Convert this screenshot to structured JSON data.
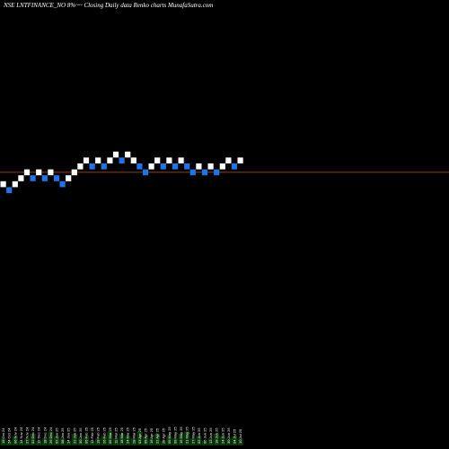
{
  "chart_title": "NSE LNTFINANCE_NO 8%~~  Closing Daily data  Renko  charts MunafaSutra.com",
  "colors": {
    "background": "#000000",
    "up_brick": "#ffffff",
    "down_brick": "#1e74e8",
    "reference_line": "#c0541a",
    "volume": "#0a3a0a"
  },
  "chart_data": {
    "type": "renko",
    "title": "NSE LNTFINANCE_NO 8%~~  Closing Daily data  Renko  charts MunafaSutra.com",
    "xlabel": "",
    "ylabel": "",
    "grid": false,
    "bricks": [
      {
        "level": 2,
        "dir": "up"
      },
      {
        "level": 1,
        "dir": "down"
      },
      {
        "level": 2,
        "dir": "up"
      },
      {
        "level": 3,
        "dir": "up"
      },
      {
        "level": 4,
        "dir": "up"
      },
      {
        "level": 3,
        "dir": "down"
      },
      {
        "level": 4,
        "dir": "up"
      },
      {
        "level": 3,
        "dir": "down"
      },
      {
        "level": 4,
        "dir": "up"
      },
      {
        "level": 3,
        "dir": "down"
      },
      {
        "level": 2,
        "dir": "down"
      },
      {
        "level": 3,
        "dir": "up"
      },
      {
        "level": 4,
        "dir": "up"
      },
      {
        "level": 5,
        "dir": "up"
      },
      {
        "level": 6,
        "dir": "up"
      },
      {
        "level": 5,
        "dir": "down"
      },
      {
        "level": 6,
        "dir": "up"
      },
      {
        "level": 5,
        "dir": "down"
      },
      {
        "level": 6,
        "dir": "up"
      },
      {
        "level": 7,
        "dir": "up"
      },
      {
        "level": 6,
        "dir": "down"
      },
      {
        "level": 7,
        "dir": "up"
      },
      {
        "level": 6,
        "dir": "up"
      },
      {
        "level": 5,
        "dir": "down"
      },
      {
        "level": 4,
        "dir": "down"
      },
      {
        "level": 5,
        "dir": "up"
      },
      {
        "level": 6,
        "dir": "up"
      },
      {
        "level": 5,
        "dir": "down"
      },
      {
        "level": 6,
        "dir": "up"
      },
      {
        "level": 5,
        "dir": "down"
      },
      {
        "level": 6,
        "dir": "up"
      },
      {
        "level": 5,
        "dir": "down"
      },
      {
        "level": 4,
        "dir": "down"
      },
      {
        "level": 5,
        "dir": "up"
      },
      {
        "level": 4,
        "dir": "down"
      },
      {
        "level": 5,
        "dir": "up"
      },
      {
        "level": 4,
        "dir": "down"
      },
      {
        "level": 5,
        "dir": "up"
      },
      {
        "level": 6,
        "dir": "up"
      },
      {
        "level": 5,
        "dir": "down"
      },
      {
        "level": 6,
        "dir": "up"
      }
    ],
    "reference_level": 4.5,
    "x_tick_labels": [
      "15 Oct 24",
      "24 Oct 24",
      "06 Nov 24",
      "14 Nov 24",
      "27 Nov 24",
      "02 Dec 24",
      "12 Dec 24",
      "18 Dec 24",
      "26 Dec 24",
      "02 Jan 25",
      "08 Jan 25",
      "14 Jan 25",
      "22 Jan 25",
      "30 Jan 25",
      "05 Feb 25",
      "13 Feb 25",
      "19 Feb 25",
      "26 Feb 25",
      "05 Mar 25",
      "11 Mar 25",
      "18 Mar 25",
      "24 Mar 25",
      "28 Mar 25",
      "03 Apr 25",
      "09 Apr 25",
      "16 Apr 25",
      "22 Apr 25",
      "28 Apr 25",
      "05 May 25",
      "09 May 25",
      "15 May 25",
      "21 May 25",
      "27 May 25",
      "02 Jun 25",
      "06 Jun 25",
      "12 Jun 25",
      "18 Jun 25",
      "24 Jun 25",
      "30 Jun 25",
      "04 Jul 25",
      "10 Jul 25"
    ],
    "volume": [
      3,
      2,
      4,
      2,
      3,
      5,
      2,
      3,
      6,
      4,
      3,
      2,
      5,
      3,
      4,
      2,
      3,
      4,
      6,
      3,
      5,
      4,
      3,
      6,
      4,
      3,
      5,
      2,
      4,
      3,
      5,
      6,
      3,
      4,
      2,
      3,
      5,
      4,
      3,
      4,
      3
    ]
  }
}
